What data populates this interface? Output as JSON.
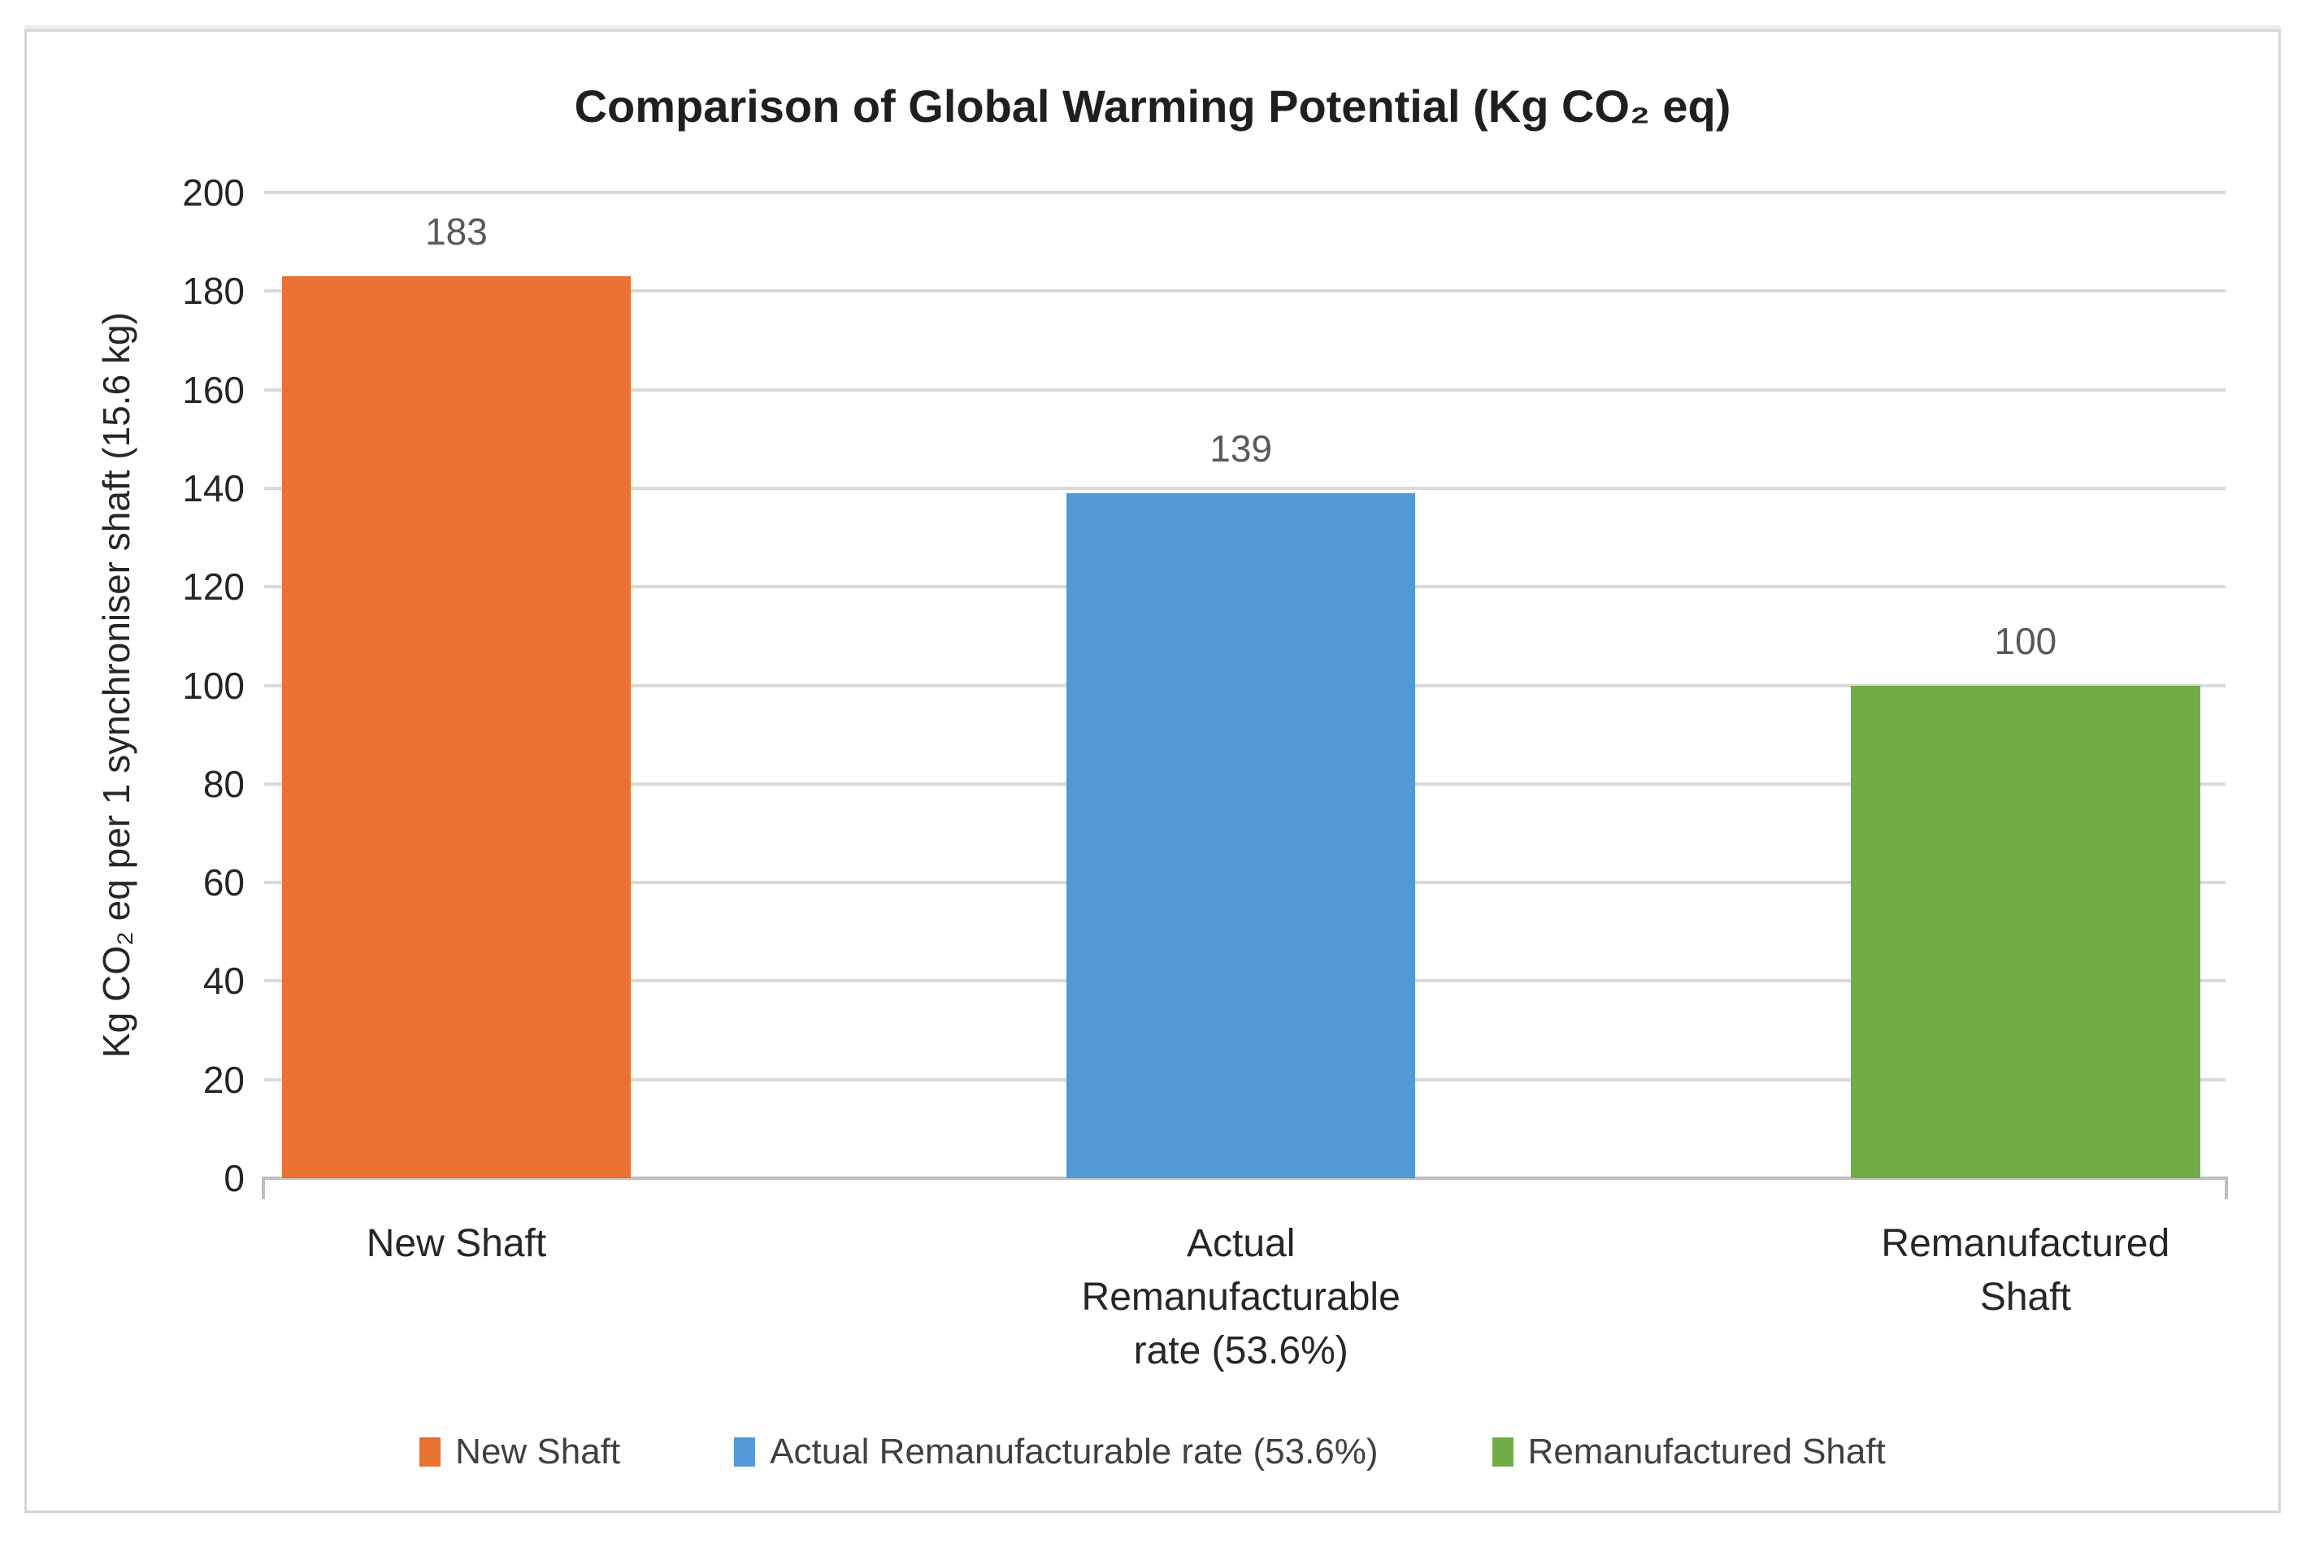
{
  "chart_data": {
    "type": "bar",
    "title": "Comparison of Global Warming Potential (Kg CO₂ eq)",
    "ylabel": "Kg CO₂ eq per 1 synchroniser shaft (15.6 kg)",
    "xlabel": "",
    "categories": [
      "New Shaft",
      "Actual Remanufacturable rate (53.6%)",
      "Remanufactured Shaft"
    ],
    "category_label_lines": [
      [
        "New Shaft"
      ],
      [
        "Actual",
        "Remanufacturable",
        "rate (53.6%)"
      ],
      [
        "Remanufactured",
        "Shaft"
      ]
    ],
    "values": [
      183,
      139,
      100
    ],
    "data_labels": [
      "183",
      "139",
      "100"
    ],
    "bar_colors": [
      "#E97132",
      "#5499D7",
      "#70AD47"
    ],
    "ylim": [
      0,
      200
    ],
    "ytick_step": 20,
    "grid": "horizontal-major",
    "gridline_color": "#D9D9D9",
    "axis_line_color": "#BFBFBF",
    "legend": {
      "position": "bottom",
      "entries": [
        {
          "label": "New Shaft",
          "color": "#E97132"
        },
        {
          "label": "Actual Remanufacturable rate (53.6%)",
          "color": "#5499D7"
        },
        {
          "label": "Remanufactured Shaft",
          "color": "#70AD47"
        }
      ]
    }
  }
}
